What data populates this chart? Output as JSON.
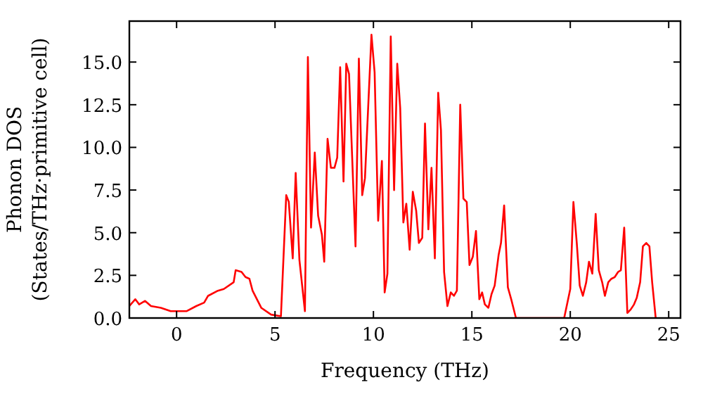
{
  "chart_data": {
    "type": "line",
    "xlabel": "Frequency (THz)",
    "ylabel": "Phonon DOS\n(States/THz·primitive cell)",
    "xlim": [
      -2.4,
      25.6
    ],
    "ylim": [
      0,
      17.4
    ],
    "xticks": [
      0,
      5,
      10,
      15,
      20,
      25
    ],
    "yticks": [
      {
        "value": 0,
        "label": "0.0"
      },
      {
        "value": 2.5,
        "label": "2.5"
      },
      {
        "value": 5,
        "label": "5.0"
      },
      {
        "value": 7.5,
        "label": "7.5"
      },
      {
        "value": 10,
        "label": "10.0"
      },
      {
        "value": 12.5,
        "label": "12.5"
      },
      {
        "value": 15,
        "label": "15.0"
      }
    ],
    "grid": false,
    "legend": false,
    "marker": "none",
    "line_style": "solid",
    "series": [
      {
        "color": "#ff0000",
        "x": [
          -2.4,
          -2.1,
          -1.9,
          -1.6,
          -1.3,
          -0.8,
          -0.3,
          0.5,
          1.0,
          1.4,
          1.6,
          2.1,
          2.4,
          2.9,
          3.0,
          3.3,
          3.5,
          3.7,
          3.86,
          4.3,
          4.8,
          5.3,
          5.57,
          5.7,
          5.9,
          6.05,
          6.24,
          6.52,
          6.67,
          6.83,
          7.02,
          7.19,
          7.38,
          7.5,
          7.67,
          7.84,
          8.02,
          8.16,
          8.31,
          8.48,
          8.62,
          8.76,
          9.09,
          9.26,
          9.43,
          9.57,
          9.9,
          10.06,
          10.24,
          10.43,
          10.57,
          10.71,
          10.88,
          11.05,
          11.21,
          11.36,
          11.52,
          11.67,
          11.84,
          12.0,
          12.17,
          12.31,
          12.48,
          12.62,
          12.79,
          12.95,
          13.12,
          13.29,
          13.43,
          13.59,
          13.76,
          13.93,
          14.09,
          14.24,
          14.41,
          14.57,
          14.74,
          14.88,
          15.05,
          15.21,
          15.38,
          15.52,
          15.66,
          15.84,
          16.0,
          16.16,
          16.36,
          16.48,
          16.64,
          16.83,
          17.0,
          17.24,
          19.69,
          20.0,
          20.16,
          20.33,
          20.48,
          20.64,
          20.81,
          20.95,
          21.12,
          21.29,
          21.45,
          21.62,
          21.76,
          21.93,
          22.09,
          22.26,
          22.43,
          22.57,
          22.74,
          22.9,
          23.07,
          23.24,
          23.38,
          23.55,
          23.69,
          23.86,
          24.02,
          24.16,
          24.34
        ],
        "values": [
          0.7,
          1.1,
          0.8,
          1.0,
          0.7,
          0.6,
          0.4,
          0.4,
          0.7,
          0.9,
          1.3,
          1.6,
          1.7,
          2.1,
          2.8,
          2.7,
          2.4,
          2.3,
          1.6,
          0.6,
          0.2,
          0.1,
          7.2,
          6.8,
          3.5,
          8.5,
          3.4,
          0.4,
          15.3,
          5.3,
          9.7,
          6.0,
          4.9,
          3.3,
          10.5,
          8.8,
          8.8,
          9.4,
          14.7,
          8.0,
          14.9,
          14.3,
          4.2,
          15.2,
          7.2,
          8.2,
          16.6,
          14.4,
          5.7,
          9.2,
          1.5,
          2.6,
          16.5,
          7.5,
          14.9,
          12.3,
          5.6,
          6.7,
          4.0,
          7.4,
          6.3,
          4.4,
          4.7,
          11.4,
          5.2,
          8.8,
          3.5,
          13.2,
          11.0,
          2.7,
          0.7,
          1.5,
          1.3,
          1.6,
          12.5,
          7.0,
          6.8,
          3.1,
          3.6,
          5.1,
          1.1,
          1.5,
          0.8,
          0.6,
          1.4,
          1.9,
          3.7,
          4.4,
          6.6,
          1.8,
          1.1,
          0,
          0,
          1.7,
          6.8,
          4.4,
          1.9,
          1.3,
          2.1,
          3.3,
          2.6,
          6.1,
          2.8,
          2.1,
          1.3,
          2.1,
          2.3,
          2.4,
          2.7,
          2.8,
          5.3,
          0.3,
          0.5,
          0.8,
          1.2,
          2.1,
          4.2,
          4.4,
          4.2,
          2.1,
          0
        ]
      }
    ]
  }
}
